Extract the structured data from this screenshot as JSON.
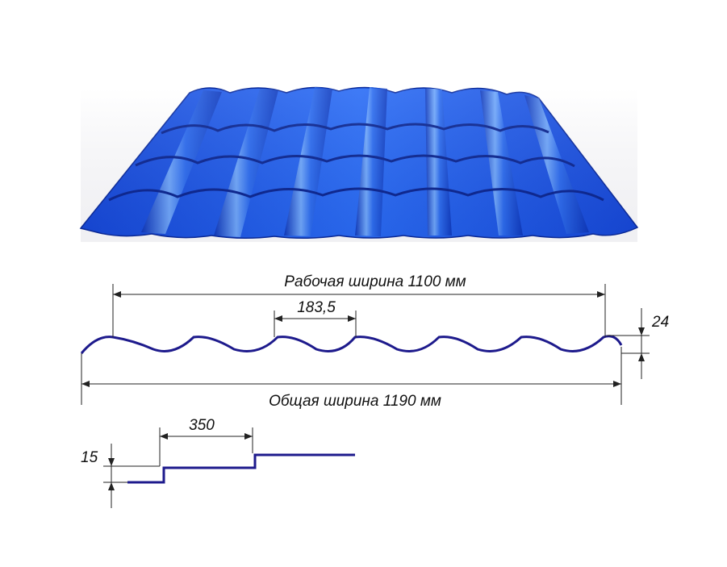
{
  "colors": {
    "sheet_light": "#5aa0ff",
    "sheet_mid": "#1f5ce8",
    "sheet_dark": "#0b2fa8",
    "profile_line": "#1d1a8c",
    "dimension_line": "#222222"
  },
  "labels": {
    "working_width": "Рабочая ширина 1100 мм",
    "wave_pitch": "183,5",
    "wave_height": "24",
    "total_width": "Общая ширина 1190 мм",
    "step_length": "350",
    "step_height": "15"
  }
}
